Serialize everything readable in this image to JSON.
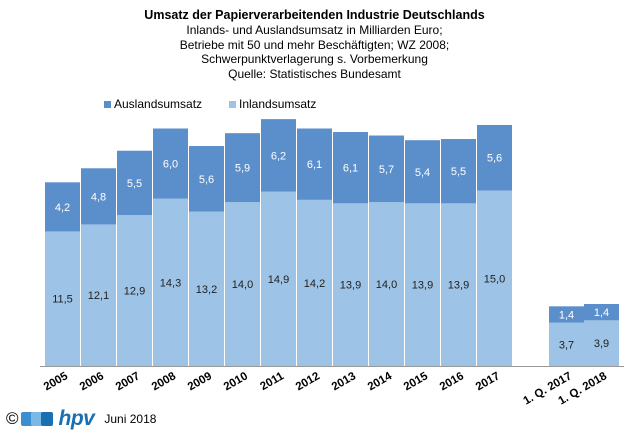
{
  "header": {
    "title": "Umsatz der Papierverarbeitenden Industrie Deutschlands",
    "subtitle_lines": [
      "Inlands- und Auslandsumsatz in Milliarden Euro;",
      "Betriebe mit 50 und mehr Beschäftigten;  WZ 2008;",
      "Schwerpunktverlagerung  s. Vorbemerkung",
      "Quelle: Statistisches Bundesamt"
    ]
  },
  "chart_data": {
    "type": "bar",
    "stacked": true,
    "categories": [
      "2005",
      "2006",
      "2007",
      "2008",
      "2009",
      "2010",
      "2011",
      "2012",
      "2013",
      "2014",
      "2015",
      "2016",
      "2017",
      "1. Q. 2017",
      "1. Q. 2018"
    ],
    "series": [
      {
        "name": "Inlandsumsatz",
        "color": "#9dc3e6",
        "values": [
          11.5,
          12.1,
          12.9,
          14.3,
          13.2,
          14.0,
          14.9,
          14.2,
          13.9,
          14.0,
          13.9,
          13.9,
          15.0,
          3.7,
          3.9
        ],
        "labels": [
          "11,5",
          "12,1",
          "12,9",
          "14,3",
          "13,2",
          "14,0",
          "14,9",
          "14,2",
          "13,9",
          "14,0",
          "13,9",
          "13,9",
          "15,0",
          "3,7",
          "3,9"
        ]
      },
      {
        "name": "Auslandsumsatz",
        "color": "#5b8fcc",
        "values": [
          4.2,
          4.8,
          5.5,
          6.0,
          5.6,
          5.9,
          6.2,
          6.1,
          6.1,
          5.7,
          5.4,
          5.5,
          5.6,
          1.4,
          1.4
        ],
        "labels": [
          "4,2",
          "4,8",
          "5,5",
          "6,0",
          "5,6",
          "5,9",
          "6,2",
          "6,1",
          "6,1",
          "5,7",
          "5,4",
          "5,5",
          "5,6",
          "1,4",
          "1,4"
        ]
      }
    ],
    "legend_order": [
      "Auslandsumsatz",
      "Inlandsumsatz"
    ],
    "legend_position": "top-left",
    "grid": false
  },
  "footer": {
    "copyright": "©",
    "logo_text": "hpv",
    "logo_squares": [
      "#3a8fd0",
      "#7ab8e5",
      "#1a6fb3"
    ],
    "date": "Juni 2018"
  }
}
